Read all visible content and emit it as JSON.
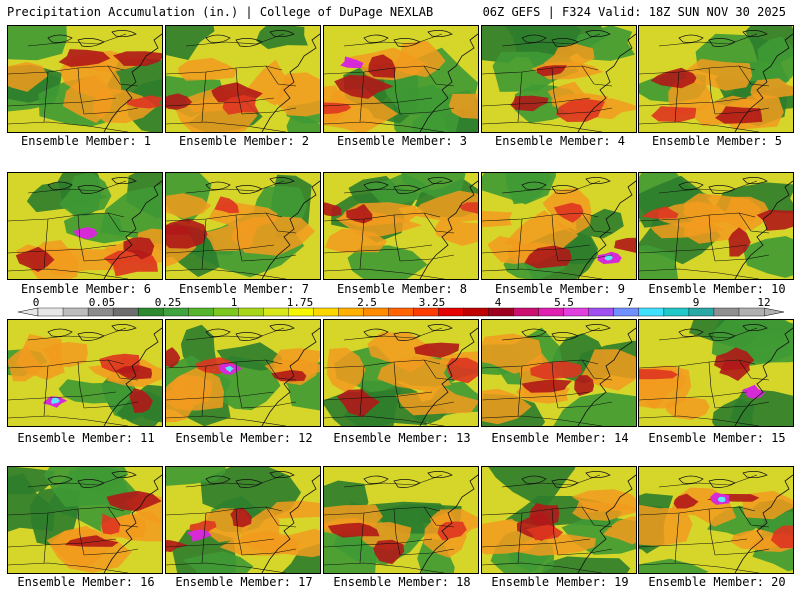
{
  "header": {
    "left": "Precipitation Accumulation (in.) | College of DuPage NEXLAB",
    "right": "06Z GEFS | F324 Valid: 18Z SUN NOV 30 2025"
  },
  "panels": [
    {
      "label": "Ensemble Member: 1"
    },
    {
      "label": "Ensemble Member: 2"
    },
    {
      "label": "Ensemble Member: 3"
    },
    {
      "label": "Ensemble Member: 4"
    },
    {
      "label": "Ensemble Member: 5"
    },
    {
      "label": "Ensemble Member: 6"
    },
    {
      "label": "Ensemble Member: 7"
    },
    {
      "label": "Ensemble Member: 8"
    },
    {
      "label": "Ensemble Member: 9"
    },
    {
      "label": "Ensemble Member: 10"
    },
    {
      "label": "Ensemble Member: 11"
    },
    {
      "label": "Ensemble Member: 12"
    },
    {
      "label": "Ensemble Member: 13"
    },
    {
      "label": "Ensemble Member: 14"
    },
    {
      "label": "Ensemble Member: 15"
    },
    {
      "label": "Ensemble Member: 16"
    },
    {
      "label": "Ensemble Member: 17"
    },
    {
      "label": "Ensemble Member: 18"
    },
    {
      "label": "Ensemble Member: 19"
    },
    {
      "label": "Ensemble Member: 20"
    }
  ],
  "colorbar": {
    "labels": [
      "0",
      "0.05",
      "0.25",
      "1",
      "1.75",
      "2.5",
      "3.25",
      "4",
      "5.5",
      "7",
      "9",
      "12"
    ],
    "colors": [
      "#e6e6e6",
      "#bdbdbd",
      "#8c8c8c",
      "#6e6e6e",
      "#2f8a2f",
      "#3fa33f",
      "#55b52c",
      "#7cc820",
      "#a8d61a",
      "#d9e81a",
      "#f7f700",
      "#ffd700",
      "#ffb000",
      "#ff8c00",
      "#ff6400",
      "#ff3c00",
      "#e60000",
      "#c00000",
      "#a00020",
      "#cc1070",
      "#e020b0",
      "#e040e0",
      "#a050f0",
      "#7090ff",
      "#40e0ff",
      "#20c8c8",
      "#2aa8a8",
      "#909090",
      "#b0b0b0"
    ],
    "palette": {
      "background": "#d6d62a",
      "green": "#3f9a34",
      "dark_green": "#2c7d2c",
      "orange": "#f29b1e",
      "red": "#de3520",
      "dark_red": "#b01818",
      "magenta": "#d62ad6",
      "cyan": "#5ee6ff"
    }
  }
}
